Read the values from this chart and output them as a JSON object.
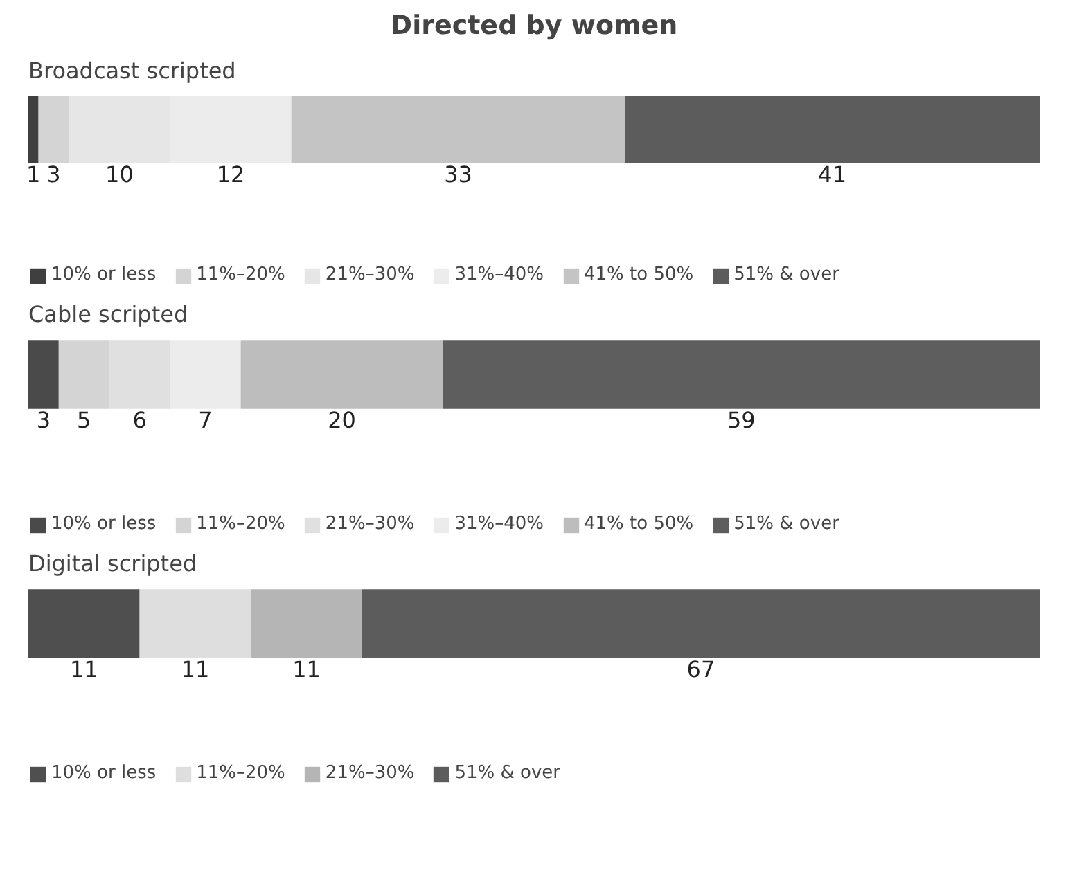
{
  "chart_data": [
    {
      "type": "bar",
      "title": "Directed by women",
      "subtitle": "Broadcast scripted",
      "orientation": "horizontal",
      "stacked": true,
      "categories": [
        null
      ],
      "xlim": [
        0,
        100
      ],
      "tick_labels": false,
      "grid": false,
      "data_labels": true,
      "legend": "bottom",
      "series": [
        {
          "name": "10% or less",
          "color": "#3f3f3f",
          "values": [
            1
          ]
        },
        {
          "name": "11%–20%",
          "color": "#d4d4d4",
          "values": [
            3
          ]
        },
        {
          "name": "21%–30%",
          "color": "#e6e6e6",
          "values": [
            10
          ]
        },
        {
          "name": "31%–40%",
          "color": "#ececec",
          "values": [
            12
          ]
        },
        {
          "name": "41% to 50%",
          "color": "#c4c4c4",
          "values": [
            33
          ]
        },
        {
          "name": "51% & over",
          "color": "#5c5c5c",
          "values": [
            41
          ]
        }
      ]
    },
    {
      "type": "bar",
      "subtitle": "Cable scripted",
      "orientation": "horizontal",
      "stacked": true,
      "categories": [
        null
      ],
      "xlim": [
        0,
        100
      ],
      "tick_labels": false,
      "grid": false,
      "data_labels": true,
      "legend": "bottom",
      "series": [
        {
          "name": "10% or less",
          "color": "#4a4a4a",
          "values": [
            3
          ]
        },
        {
          "name": "11%–20%",
          "color": "#d4d4d4",
          "values": [
            5
          ]
        },
        {
          "name": "21%–30%",
          "color": "#e0e0e0",
          "values": [
            6
          ]
        },
        {
          "name": "31%–40%",
          "color": "#ececec",
          "values": [
            7
          ]
        },
        {
          "name": "41% to 50%",
          "color": "#bdbdbd",
          "values": [
            20
          ]
        },
        {
          "name": "51% & over",
          "color": "#5e5e5e",
          "values": [
            59
          ]
        }
      ]
    },
    {
      "type": "bar",
      "subtitle": "Digital scripted",
      "orientation": "horizontal",
      "stacked": true,
      "categories": [
        null
      ],
      "xlim": [
        0,
        100
      ],
      "tick_labels": false,
      "grid": false,
      "data_labels": true,
      "legend": "bottom",
      "series": [
        {
          "name": "10% or less",
          "color": "#4f4f4f",
          "values": [
            11
          ]
        },
        {
          "name": "11%–20%",
          "color": "#dedede",
          "values": [
            11
          ]
        },
        {
          "name": "21%–30%",
          "color": "#b5b5b5",
          "values": [
            11
          ]
        },
        {
          "name": "51% & over",
          "color": "#5c5c5c",
          "values": [
            67
          ]
        }
      ]
    }
  ]
}
